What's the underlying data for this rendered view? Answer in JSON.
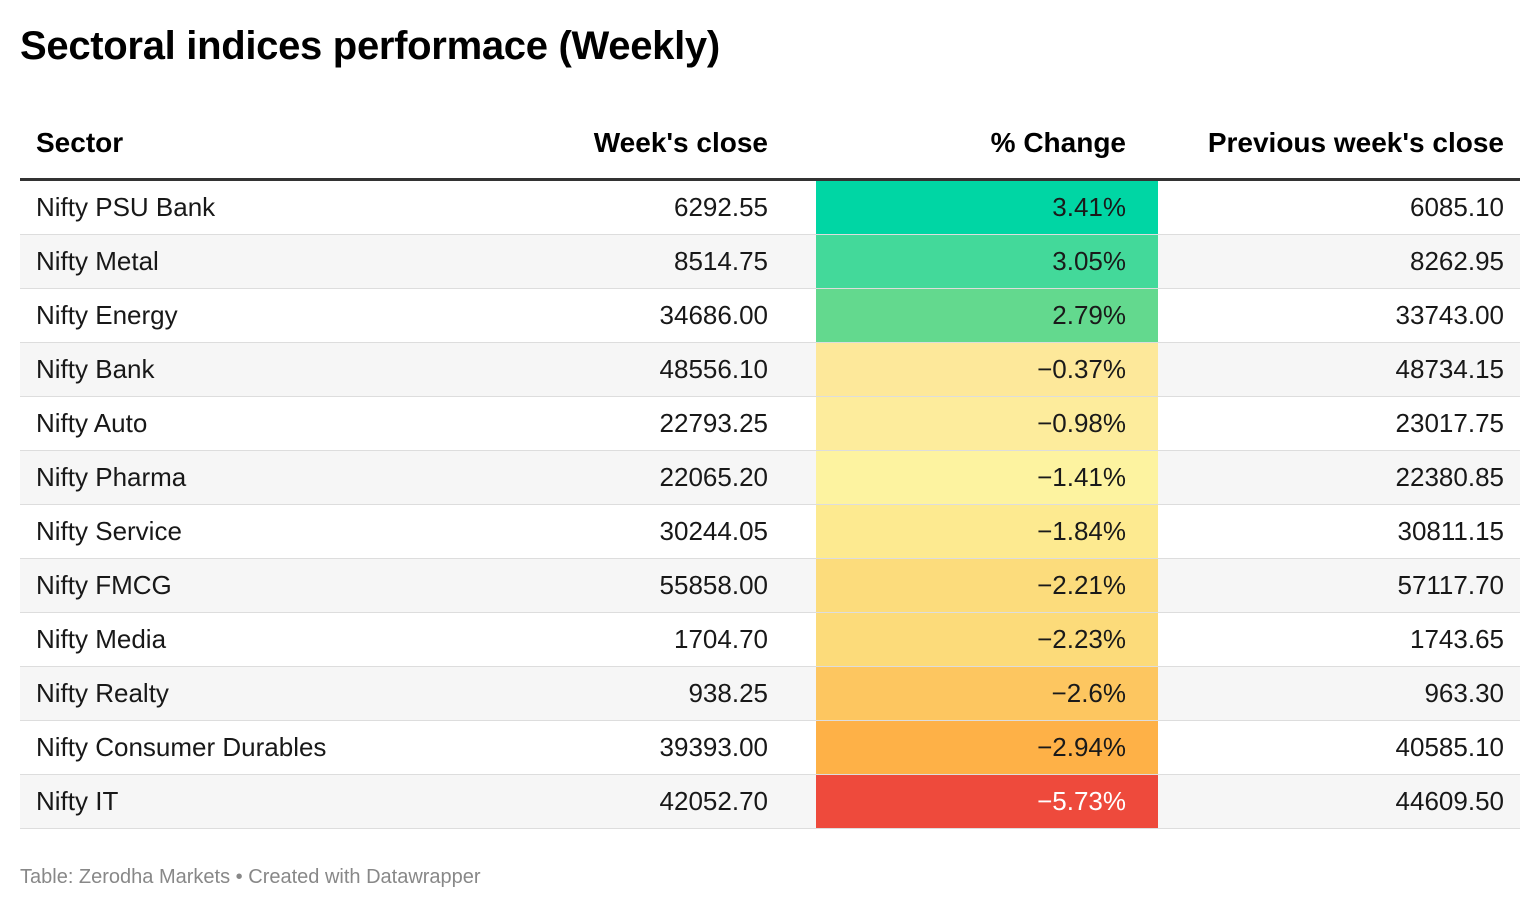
{
  "title": "Sectoral indices performace (Weekly)",
  "footer": {
    "source": "Table: Zerodha Markets",
    "separator": "•",
    "credit": "Created with Datawrapper"
  },
  "chart_data": {
    "type": "table",
    "columns": [
      "Sector",
      "Week's close",
      "% Change",
      "Previous week's close"
    ],
    "rows": [
      {
        "sector": "Nifty PSU Bank",
        "close": "6292.55",
        "change": "3.41%",
        "change_value": 3.41,
        "prev": "6085.10",
        "color": "#00d6a4",
        "text_color": "#1a1a1a"
      },
      {
        "sector": "Nifty Metal",
        "close": "8514.75",
        "change": "3.05%",
        "change_value": 3.05,
        "prev": "8262.95",
        "color": "#43d99a",
        "text_color": "#1a1a1a"
      },
      {
        "sector": "Nifty Energy",
        "close": "34686.00",
        "change": "2.79%",
        "change_value": 2.79,
        "prev": "33743.00",
        "color": "#63d98e",
        "text_color": "#1a1a1a"
      },
      {
        "sector": "Nifty Bank",
        "close": "48556.10",
        "change": "−0.37%",
        "change_value": -0.37,
        "prev": "48734.15",
        "color": "#fde89a",
        "text_color": "#1a1a1a"
      },
      {
        "sector": "Nifty Auto",
        "close": "22793.25",
        "change": "−0.98%",
        "change_value": -0.98,
        "prev": "23017.75",
        "color": "#fdec9c",
        "text_color": "#1a1a1a"
      },
      {
        "sector": "Nifty Pharma",
        "close": "22065.20",
        "change": "−1.41%",
        "change_value": -1.41,
        "prev": "22380.85",
        "color": "#fdf3a0",
        "text_color": "#1a1a1a"
      },
      {
        "sector": "Nifty Service",
        "close": "30244.05",
        "change": "−1.84%",
        "change_value": -1.84,
        "prev": "30811.15",
        "color": "#fdea90",
        "text_color": "#1a1a1a"
      },
      {
        "sector": "Nifty FMCG",
        "close": "55858.00",
        "change": "−2.21%",
        "change_value": -2.21,
        "prev": "57117.70",
        "color": "#fcdc7c",
        "text_color": "#1a1a1a"
      },
      {
        "sector": "Nifty Media",
        "close": "1704.70",
        "change": "−2.23%",
        "change_value": -2.23,
        "prev": "1743.65",
        "color": "#fcdb7a",
        "text_color": "#1a1a1a"
      },
      {
        "sector": "Nifty Realty",
        "close": "938.25",
        "change": "−2.6%",
        "change_value": -2.6,
        "prev": "963.30",
        "color": "#fdc660",
        "text_color": "#1a1a1a"
      },
      {
        "sector": "Nifty Consumer Durables",
        "close": "39393.00",
        "change": "−2.94%",
        "change_value": -2.94,
        "prev": "40585.10",
        "color": "#feb147",
        "text_color": "#1a1a1a"
      },
      {
        "sector": "Nifty IT",
        "close": "42052.70",
        "change": "−5.73%",
        "change_value": -5.73,
        "prev": "44609.50",
        "color": "#ee4a3c",
        "text_color": "#ffffff"
      }
    ]
  }
}
